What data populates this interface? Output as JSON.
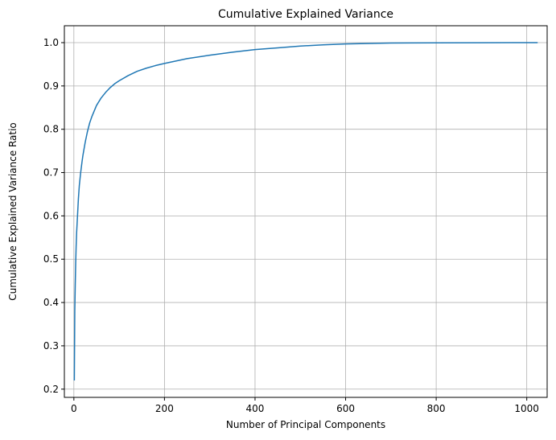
{
  "chart_data": {
    "type": "line",
    "title": "Cumulative Explained Variance",
    "xlabel": "Number of Principal Components",
    "ylabel": "Cumulative Explained Variance Ratio",
    "xlim": [
      -21,
      1045
    ],
    "ylim": [
      0.181,
      1.039
    ],
    "grid": true,
    "xticks": [
      0,
      200,
      400,
      600,
      800,
      1000
    ],
    "xtick_labels": [
      "0",
      "200",
      "400",
      "600",
      "800",
      "1000"
    ],
    "yticks": [
      0.2,
      0.3,
      0.4,
      0.5,
      0.6,
      0.7,
      0.8,
      0.9,
      1.0
    ],
    "ytick_labels": [
      "0.2",
      "0.3",
      "0.4",
      "0.5",
      "0.6",
      "0.7",
      "0.8",
      "0.9",
      "1.0"
    ],
    "series": [
      {
        "color": "#1f77b4",
        "x": [
          1,
          2,
          3,
          4,
          5,
          6,
          8,
          10,
          12,
          15,
          18,
          20,
          25,
          30,
          35,
          40,
          50,
          60,
          70,
          80,
          90,
          100,
          120,
          140,
          160,
          180,
          200,
          250,
          300,
          350,
          400,
          450,
          500,
          550,
          600,
          700,
          800,
          900,
          1000,
          1024
        ],
        "y": [
          0.22,
          0.38,
          0.44,
          0.49,
          0.53,
          0.56,
          0.6,
          0.64,
          0.67,
          0.7,
          0.725,
          0.74,
          0.77,
          0.795,
          0.815,
          0.83,
          0.855,
          0.872,
          0.885,
          0.896,
          0.905,
          0.912,
          0.924,
          0.934,
          0.941,
          0.947,
          0.952,
          0.963,
          0.971,
          0.978,
          0.984,
          0.988,
          0.992,
          0.995,
          0.997,
          0.999,
          0.9995,
          0.9998,
          1.0,
          1.0
        ]
      }
    ]
  }
}
